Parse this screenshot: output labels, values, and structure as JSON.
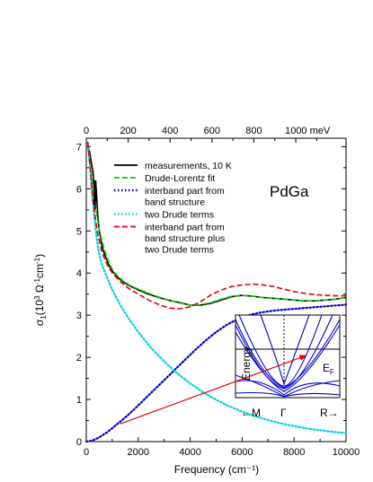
{
  "chart_data": {
    "type": "line",
    "title": "",
    "material": "PdGa",
    "xlabel": "Frequency (cm⁻¹)",
    "ylabel": {
      "main": "σ",
      "sub": "1",
      "rest": "(10",
      "sup1": "3",
      "unit": " Ω",
      "sup2": "-1",
      "unit2": "cm",
      "sup3": "-1",
      "close": ")"
    },
    "xlim": [
      0,
      10000
    ],
    "ylim": [
      0,
      7.2
    ],
    "x_ticks": [
      0,
      2000,
      4000,
      6000,
      8000,
      10000
    ],
    "x_tick_labels": [
      "0",
      "2000",
      "4000",
      "6000",
      "8000",
      "10000"
    ],
    "y_ticks": [
      0,
      1,
      2,
      3,
      4,
      5,
      6,
      7
    ],
    "y_tick_labels": [
      "0",
      "1",
      "2",
      "3",
      "4",
      "5",
      "6",
      "7"
    ],
    "top_axis": {
      "unit": "meV",
      "ticks": [
        0,
        200,
        400,
        600,
        800,
        1000
      ],
      "tick_labels": [
        "0",
        "200",
        "400",
        "600",
        "800",
        "1000 meV"
      ],
      "cm_per_mev": 8.0655
    },
    "legend_position": "top-center",
    "series": [
      {
        "name": "measurements, 10 K",
        "color": "#000000",
        "style": "solid",
        "x": [
          60,
          120,
          200,
          260,
          300,
          330,
          360,
          400,
          450,
          500,
          560,
          620,
          700,
          800,
          900,
          1000,
          1200,
          1400,
          1600,
          1800,
          2000,
          2400,
          2800,
          3200,
          3600,
          4000,
          4400,
          4800,
          5200,
          5600,
          6000,
          6400,
          6800,
          7200,
          7600,
          8000,
          8400,
          8800,
          9200,
          9600,
          10000
        ],
        "y": [
          7.0,
          6.9,
          6.6,
          6.4,
          6.0,
          5.6,
          6.2,
          5.8,
          5.3,
          5.0,
          4.8,
          4.6,
          4.45,
          4.3,
          4.15,
          4.05,
          3.9,
          3.8,
          3.72,
          3.66,
          3.6,
          3.5,
          3.42,
          3.35,
          3.3,
          3.24,
          3.24,
          3.28,
          3.36,
          3.44,
          3.47,
          3.45,
          3.42,
          3.4,
          3.38,
          3.36,
          3.34,
          3.34,
          3.36,
          3.38,
          3.42
        ]
      },
      {
        "name": "Drude-Lorentz fit",
        "color": "#00cc00",
        "style": "dashed",
        "x": [
          60,
          150,
          250,
          350,
          450,
          550,
          700,
          900,
          1100,
          1400,
          1700,
          2000,
          2400,
          2800,
          3200,
          3600,
          4000,
          4400,
          4800,
          5200,
          5600,
          6000,
          6400,
          6800,
          7200,
          7600,
          8000,
          8400,
          8800,
          9200,
          9600,
          10000
        ],
        "y": [
          7.0,
          6.6,
          6.1,
          5.6,
          5.2,
          4.9,
          4.55,
          4.2,
          4.0,
          3.82,
          3.7,
          3.62,
          3.52,
          3.43,
          3.35,
          3.29,
          3.24,
          3.25,
          3.3,
          3.38,
          3.45,
          3.47,
          3.45,
          3.42,
          3.4,
          3.38,
          3.36,
          3.34,
          3.34,
          3.36,
          3.38,
          3.42
        ]
      },
      {
        "name": "interband part from\nband structure",
        "color": "#0000cc",
        "style": "dotted",
        "x": [
          0,
          200,
          400,
          600,
          800,
          1000,
          1400,
          1800,
          2200,
          2600,
          3000,
          3400,
          3800,
          4200,
          4600,
          5000,
          5400,
          5800,
          6200,
          6600,
          7000,
          7400,
          7800,
          8200,
          8600,
          9000,
          9400,
          9800,
          10000
        ],
        "y": [
          0,
          0.02,
          0.07,
          0.14,
          0.22,
          0.32,
          0.52,
          0.74,
          0.98,
          1.22,
          1.46,
          1.7,
          1.94,
          2.18,
          2.4,
          2.6,
          2.77,
          2.9,
          2.99,
          3.05,
          3.09,
          3.12,
          3.14,
          3.16,
          3.18,
          3.2,
          3.22,
          3.24,
          3.25
        ]
      },
      {
        "name": "two Drude terms",
        "color": "#00d0e0",
        "style": "dotted",
        "x": [
          60,
          150,
          250,
          350,
          450,
          600,
          800,
          1000,
          1300,
          1600,
          2000,
          2500,
          3000,
          3500,
          4000,
          4500,
          5000,
          5500,
          6000,
          6500,
          7000,
          7500,
          8000,
          8500,
          9000,
          9500,
          10000
        ],
        "y": [
          7.1,
          6.5,
          5.7,
          5.1,
          4.6,
          4.2,
          3.9,
          3.6,
          3.25,
          2.95,
          2.6,
          2.22,
          1.9,
          1.62,
          1.38,
          1.17,
          0.99,
          0.84,
          0.71,
          0.6,
          0.51,
          0.43,
          0.37,
          0.31,
          0.27,
          0.23,
          0.2
        ]
      },
      {
        "name": "interband part from\nband structure plus\ntwo Drude terms",
        "color": "#e00000",
        "style": "dashed",
        "x": [
          60,
          150,
          250,
          350,
          450,
          600,
          800,
          1000,
          1300,
          1600,
          2000,
          2400,
          2800,
          3200,
          3600,
          4000,
          4400,
          4800,
          5200,
          5600,
          6000,
          6400,
          6800,
          7200,
          7600,
          8000,
          8400,
          8800,
          9200,
          9600,
          10000
        ],
        "y": [
          7.1,
          6.5,
          5.8,
          5.3,
          4.9,
          4.5,
          4.2,
          4.0,
          3.8,
          3.65,
          3.5,
          3.36,
          3.25,
          3.17,
          3.15,
          3.2,
          3.32,
          3.48,
          3.6,
          3.68,
          3.72,
          3.74,
          3.72,
          3.68,
          3.62,
          3.56,
          3.52,
          3.49,
          3.47,
          3.46,
          3.46
        ]
      }
    ],
    "inset": {
      "ylabel": "Energy",
      "ef_label": "E",
      "ef_sub": "F",
      "k_labels": [
        "←M",
        "Γ",
        "R→"
      ],
      "band_color": "#0000cc"
    },
    "arrow": {
      "from": [
        1300,
        0.42
      ],
      "to": [
        8500,
        2.05
      ],
      "color": "#e00000"
    }
  }
}
